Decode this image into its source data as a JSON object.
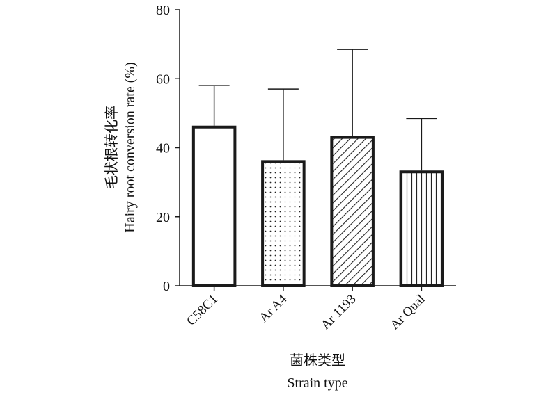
{
  "chart_data": {
    "type": "bar",
    "categories": [
      "C58C1",
      "Ar A4",
      "Ar 1193",
      "Ar Qual"
    ],
    "values": [
      46,
      36,
      43,
      33
    ],
    "errors": [
      12,
      21,
      25.5,
      15.5
    ],
    "patterns": [
      "none",
      "dots",
      "diagonal-hatch",
      "vertical-lines"
    ],
    "ylabel_cn": "毛状根转化率",
    "ylabel_en": "Hairy root conversion rate (%)",
    "xlabel_cn": "菌株类型",
    "xlabel_en": "Strain type",
    "ylim": [
      0,
      80
    ],
    "yticks": [
      0,
      20,
      40,
      60,
      80
    ],
    "grid": false,
    "bar_color": "#ffffff",
    "edge_color": "#1a1a1a"
  }
}
